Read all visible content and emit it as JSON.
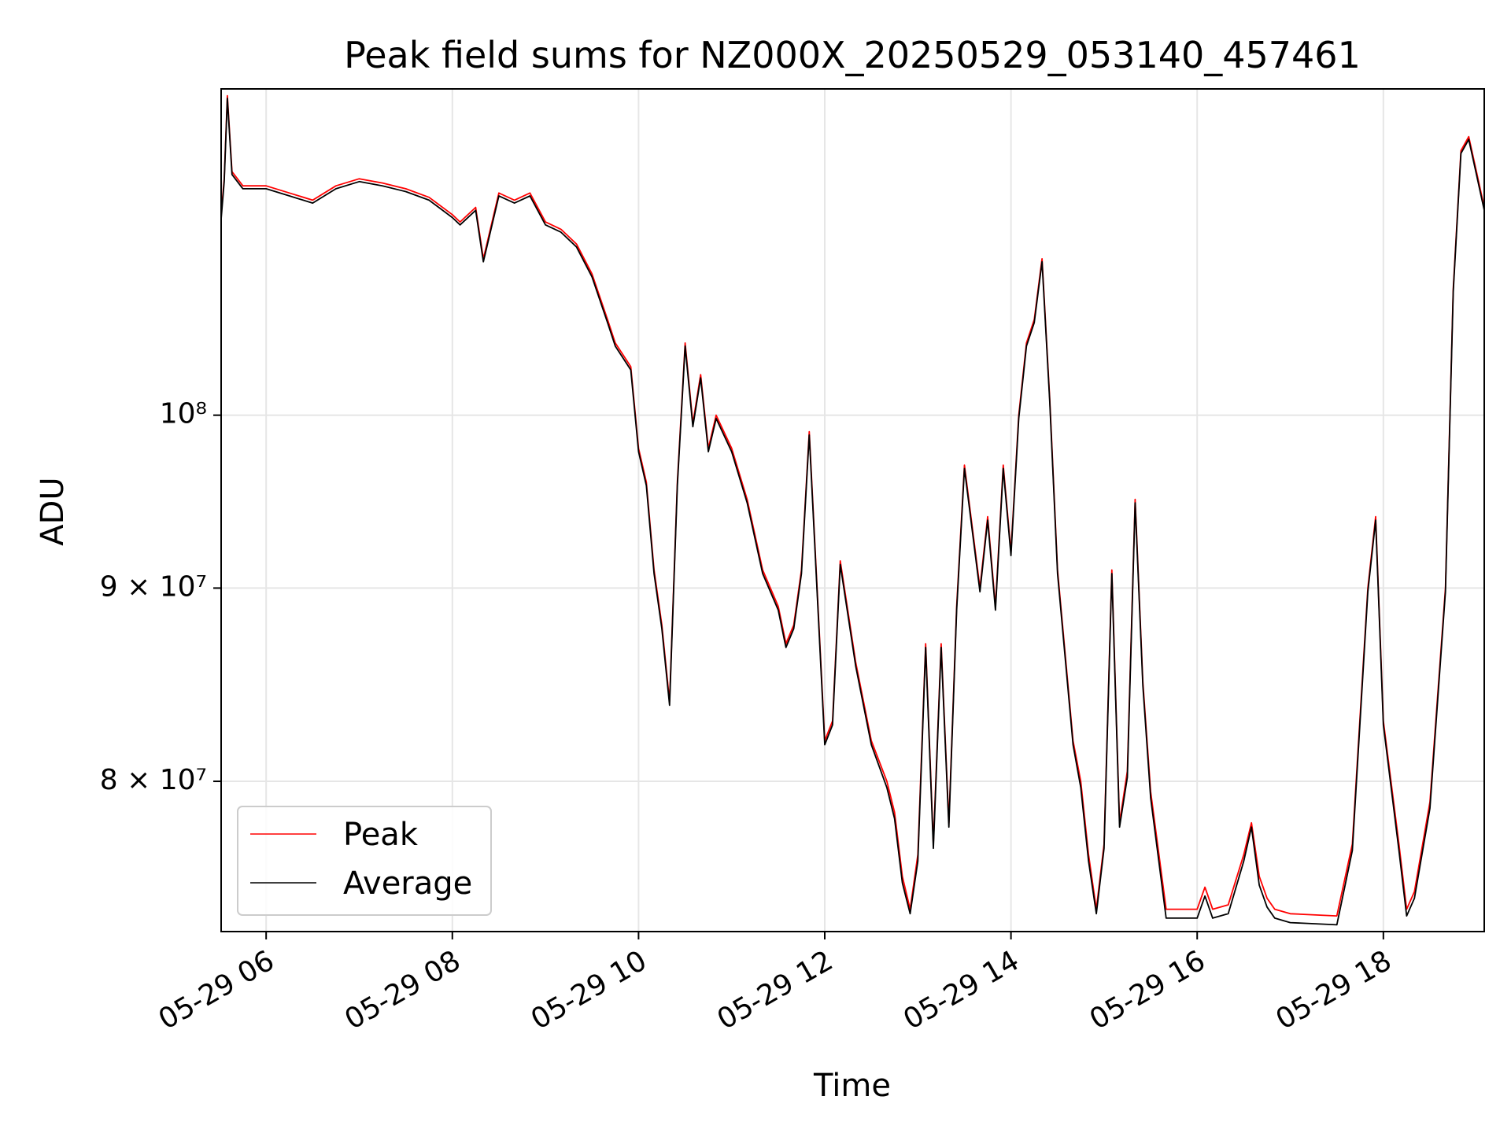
{
  "chart_data": {
    "type": "line",
    "title": "Peak field sums for NZ000X_20250529_053140_457461",
    "xlabel": "Time",
    "ylabel": "ADU",
    "x_unit": "datetime (2025-05-29)",
    "xlim": [
      "05-29 05:31",
      "05-29 19:05"
    ],
    "ylim": [
      73000000,
      122000000
    ],
    "y_scale": "log",
    "grid": true,
    "legend_position": "lower-left",
    "x_ticks": [
      "05-29 06",
      "05-29 08",
      "05-29 10",
      "05-29 12",
      "05-29 14",
      "05-29 16",
      "05-29 18"
    ],
    "y_ticks": [
      {
        "value": 80000000,
        "label": "8 × 10⁷"
      },
      {
        "value": 90000000,
        "label": "9 × 10⁷"
      },
      {
        "value": 100000000,
        "label": "10⁸"
      }
    ],
    "x": [
      "05:31",
      "05:33",
      "05:35",
      "05:38",
      "05:45",
      "06:00",
      "06:15",
      "06:30",
      "06:45",
      "07:00",
      "07:15",
      "07:30",
      "07:45",
      "08:00",
      "08:05",
      "08:15",
      "08:20",
      "08:30",
      "08:40",
      "08:50",
      "09:00",
      "09:10",
      "09:20",
      "09:30",
      "09:40",
      "09:45",
      "09:55",
      "10:00",
      "10:05",
      "10:10",
      "10:15",
      "10:20",
      "10:25",
      "10:30",
      "10:35",
      "10:40",
      "10:45",
      "10:50",
      "11:00",
      "11:10",
      "11:20",
      "11:30",
      "11:35",
      "11:40",
      "11:45",
      "11:50",
      "12:00",
      "12:05",
      "12:10",
      "12:20",
      "12:30",
      "12:40",
      "12:45",
      "12:50",
      "12:55",
      "13:00",
      "13:05",
      "13:10",
      "13:15",
      "13:20",
      "13:25",
      "13:30",
      "13:40",
      "13:45",
      "13:50",
      "13:55",
      "14:00",
      "14:05",
      "14:10",
      "14:15",
      "14:20",
      "14:25",
      "14:30",
      "14:40",
      "14:45",
      "14:50",
      "14:55",
      "15:00",
      "15:05",
      "15:10",
      "15:15",
      "15:20",
      "15:25",
      "15:30",
      "15:40",
      "16:00",
      "16:05",
      "16:10",
      "16:20",
      "16:30",
      "16:35",
      "16:40",
      "16:45",
      "16:50",
      "17:00",
      "17:30",
      "17:40",
      "17:50",
      "17:55",
      "18:00",
      "18:10",
      "18:15",
      "18:20",
      "18:30",
      "18:40",
      "18:45",
      "18:50",
      "18:55",
      "19:00",
      "19:05"
    ],
    "series": [
      {
        "name": "Peak",
        "color": "#ff0000",
        "values": [
          113000000,
          115500000,
          121500000,
          116000000,
          115000000,
          115000000,
          114500000,
          114000000,
          115000000,
          115500000,
          115200000,
          114800000,
          114200000,
          113000000,
          112500000,
          113500000,
          110000000,
          114500000,
          114000000,
          114500000,
          112500000,
          112000000,
          111000000,
          109000000,
          106000000,
          104500000,
          103000000,
          98000000,
          96000000,
          91000000,
          88000000,
          84000000,
          96000000,
          104500000,
          99500000,
          102500000,
          98000000,
          100000000,
          98000000,
          95000000,
          91000000,
          89000000,
          87000000,
          88000000,
          91000000,
          99000000,
          82000000,
          83000000,
          91500000,
          86000000,
          82000000,
          80000000,
          78500000,
          75500000,
          74000000,
          76500000,
          87000000,
          77000000,
          87000000,
          78000000,
          89000000,
          97000000,
          90000000,
          94000000,
          89000000,
          97000000,
          92000000,
          100000000,
          104500000,
          106000000,
          110000000,
          101000000,
          91000000,
          82000000,
          80000000,
          76500000,
          74000000,
          77000000,
          91000000,
          78000000,
          80500000,
          95000000,
          85000000,
          79500000,
          74000000,
          74000000,
          75000000,
          74000000,
          74200000,
          76500000,
          78000000,
          75500000,
          74500000,
          74000000,
          73800000,
          73700000,
          77000000,
          90000000,
          94000000,
          83000000,
          77000000,
          74000000,
          74800000,
          79000000,
          90000000,
          108000000,
          117500000,
          118500000,
          116000000,
          113500000
        ]
      },
      {
        "name": "Average",
        "color": "#000000",
        "values": [
          112700000,
          115300000,
          121300000,
          115800000,
          114800000,
          114800000,
          114300000,
          113800000,
          114800000,
          115300000,
          115000000,
          114600000,
          114000000,
          112800000,
          112300000,
          113300000,
          109800000,
          114300000,
          113800000,
          114300000,
          112300000,
          111800000,
          110800000,
          108800000,
          105800000,
          104300000,
          102800000,
          97800000,
          95800000,
          90800000,
          87800000,
          83800000,
          95800000,
          104300000,
          99300000,
          102300000,
          97800000,
          99800000,
          97800000,
          94800000,
          90800000,
          88800000,
          86800000,
          87800000,
          90800000,
          98800000,
          81800000,
          82800000,
          91300000,
          85800000,
          81800000,
          79700000,
          78200000,
          75200000,
          73800000,
          76200000,
          86800000,
          76800000,
          86800000,
          77800000,
          88800000,
          96800000,
          89800000,
          93800000,
          88800000,
          96800000,
          91800000,
          99800000,
          104300000,
          105800000,
          109800000,
          100800000,
          90800000,
          81800000,
          79700000,
          76200000,
          73800000,
          76800000,
          90800000,
          77800000,
          80200000,
          94800000,
          84800000,
          79200000,
          73600000,
          73600000,
          74600000,
          73600000,
          73800000,
          76200000,
          77800000,
          75100000,
          74100000,
          73600000,
          73400000,
          73300000,
          76700000,
          89800000,
          93800000,
          82800000,
          76700000,
          73700000,
          74500000,
          78700000,
          89800000,
          107800000,
          117300000,
          118300000,
          115800000,
          113300000
        ]
      }
    ]
  }
}
